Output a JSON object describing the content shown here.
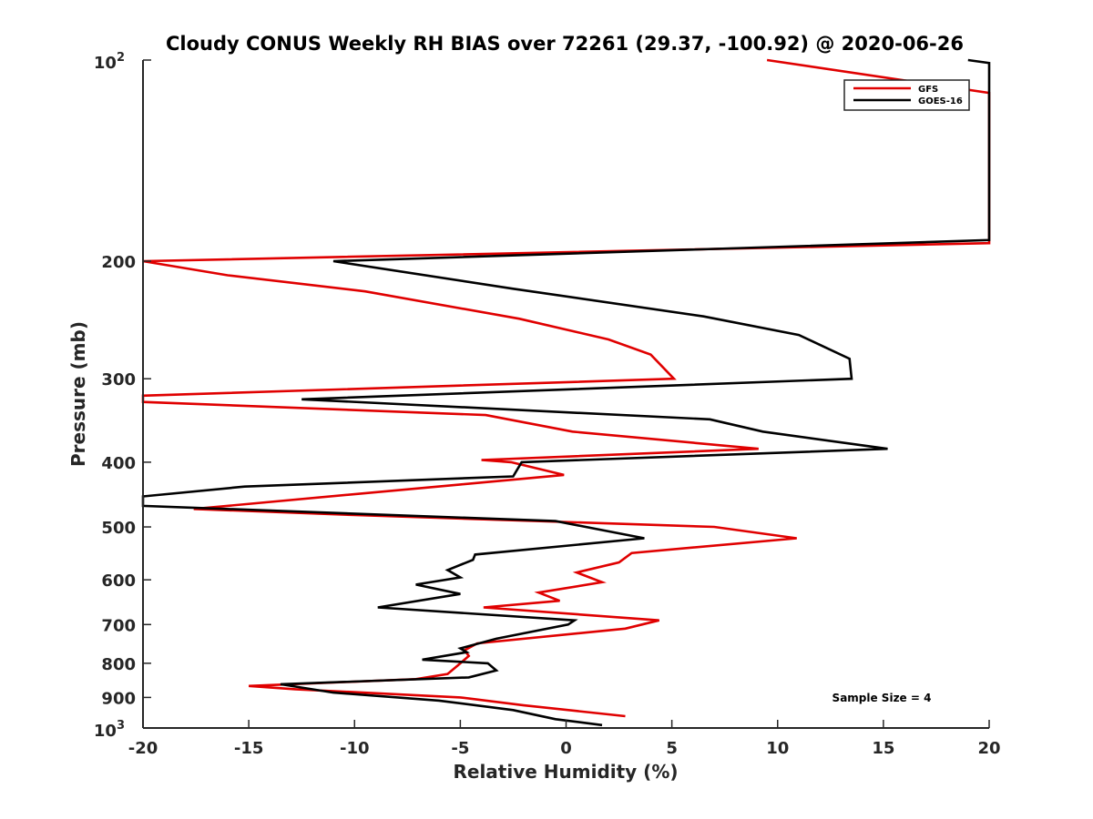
{
  "chart_data": {
    "type": "line",
    "title": "Cloudy CONUS Weekly RH BIAS over 72261 (29.37, -100.92) @ 2020-06-26",
    "xlabel": "Relative Humidity (%)",
    "ylabel": "Pressure (mb)",
    "xlim": [
      -20,
      20
    ],
    "ylim": [
      100,
      1000
    ],
    "y_scale": "log",
    "y_reversed": true,
    "x_ticks": [
      "-20",
      "-15",
      "-10",
      "-5",
      "0",
      "5",
      "10",
      "15",
      "20"
    ],
    "y_ticks": [
      {
        "value": 100,
        "base": "10",
        "exp": "2"
      },
      {
        "value": 200,
        "label": "200"
      },
      {
        "value": 300,
        "label": "300"
      },
      {
        "value": 400,
        "label": "400"
      },
      {
        "value": 500,
        "label": "500"
      },
      {
        "value": 600,
        "label": "600"
      },
      {
        "value": 700,
        "label": "700"
      },
      {
        "value": 800,
        "label": "800"
      },
      {
        "value": 900,
        "label": "900"
      },
      {
        "value": 1000,
        "base": "10",
        "exp": "3"
      }
    ],
    "grid": false,
    "legend_position": "top-right",
    "annotation": "Sample Size = 4",
    "series": [
      {
        "name": "GFS",
        "color": "#e00000",
        "points": [
          [
            9.5,
            100
          ],
          [
            20,
            112
          ],
          [
            20,
            188
          ],
          [
            -20,
            200
          ],
          [
            -16,
            210
          ],
          [
            -9.5,
            222
          ],
          [
            -2.2,
            244
          ],
          [
            2,
            262
          ],
          [
            4,
            276
          ],
          [
            5.1,
            300
          ],
          [
            -20,
            318
          ],
          [
            -20,
            325
          ],
          [
            -3.8,
            340
          ],
          [
            0.3,
            360
          ],
          [
            9.1,
            382
          ],
          [
            -4,
            397
          ],
          [
            -2.6,
            400
          ],
          [
            -0.1,
            418
          ],
          [
            -5,
            432
          ],
          [
            -17.6,
            470
          ],
          [
            -10,
            480
          ],
          [
            7,
            500
          ],
          [
            10.9,
            520
          ],
          [
            3.1,
            547
          ],
          [
            2.5,
            565
          ],
          [
            0.5,
            585
          ],
          [
            1.7,
            605
          ],
          [
            -1.3,
            627
          ],
          [
            -0.3,
            645
          ],
          [
            -3.9,
            660
          ],
          [
            4.4,
            690
          ],
          [
            2.8,
            710
          ],
          [
            -4.2,
            747
          ],
          [
            -4.8,
            765
          ],
          [
            -4.6,
            780
          ],
          [
            -5.1,
            805
          ],
          [
            -5.6,
            830
          ],
          [
            -7.1,
            845
          ],
          [
            -15,
            865
          ],
          [
            -12.8,
            875
          ],
          [
            -5,
            900
          ],
          [
            -2,
            925
          ],
          [
            2.8,
            960
          ]
        ]
      },
      {
        "name": "GOES-16",
        "color": "#000000",
        "points": [
          [
            19,
            100
          ],
          [
            20,
            101
          ],
          [
            20,
            186
          ],
          [
            -11,
            200
          ],
          [
            -2.5,
            220
          ],
          [
            6.5,
            242
          ],
          [
            11,
            258
          ],
          [
            13.4,
            280
          ],
          [
            13.5,
            300
          ],
          [
            -12.5,
            322
          ],
          [
            6.8,
            345
          ],
          [
            9.3,
            360
          ],
          [
            15.2,
            382
          ],
          [
            -2.1,
            400
          ],
          [
            -2.5,
            420
          ],
          [
            -15.2,
            435
          ],
          [
            -20,
            450
          ],
          [
            -20,
            465
          ],
          [
            -0.5,
            490
          ],
          [
            3.7,
            520
          ],
          [
            -4.3,
            550
          ],
          [
            -4.4,
            560
          ],
          [
            -5.6,
            580
          ],
          [
            -5,
            595
          ],
          [
            -7.1,
            610
          ],
          [
            -5,
            630
          ],
          [
            -8.9,
            660
          ],
          [
            0.4,
            690
          ],
          [
            0.1,
            700
          ],
          [
            -3.3,
            735
          ],
          [
            -5,
            760
          ],
          [
            -4.7,
            770
          ],
          [
            -6.8,
            790
          ],
          [
            -3.7,
            800
          ],
          [
            -3.3,
            820
          ],
          [
            -4.6,
            840
          ],
          [
            -13.5,
            860
          ],
          [
            -11,
            885
          ],
          [
            -6,
            910
          ],
          [
            -2.5,
            940
          ],
          [
            -0.5,
            970
          ],
          [
            1.7,
            990
          ]
        ]
      }
    ]
  }
}
